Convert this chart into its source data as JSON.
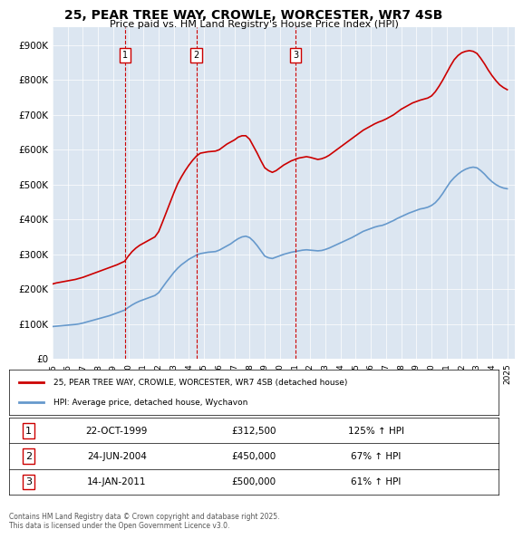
{
  "title": "25, PEAR TREE WAY, CROWLE, WORCESTER, WR7 4SB",
  "subtitle": "Price paid vs. HM Land Registry's House Price Index (HPI)",
  "ylabel_ticks": [
    "£0",
    "£100K",
    "£200K",
    "£300K",
    "£400K",
    "£500K",
    "£600K",
    "£700K",
    "£800K",
    "£900K"
  ],
  "ytick_values": [
    0,
    100000,
    200000,
    300000,
    400000,
    500000,
    600000,
    700000,
    800000,
    900000
  ],
  "ylim": [
    0,
    950000
  ],
  "xlim_start": 1995.0,
  "xlim_end": 2025.5,
  "background_color": "#dce6f1",
  "plot_bg_color": "#dce6f1",
  "red_line_color": "#cc0000",
  "blue_line_color": "#6699cc",
  "transaction_line_color": "#cc0000",
  "transactions": [
    {
      "num": 1,
      "date": "22-OCT-1999",
      "price": 312500,
      "pct": "125%",
      "direction": "↑",
      "x_year": 1999.81
    },
    {
      "num": 2,
      "date": "24-JUN-2004",
      "price": 450000,
      "pct": "67%",
      "direction": "↑",
      "x_year": 2004.48
    },
    {
      "num": 3,
      "date": "14-JAN-2011",
      "price": 500000,
      "pct": "61%",
      "direction": "↑",
      "x_year": 2011.04
    }
  ],
  "legend_red_label": "25, PEAR TREE WAY, CROWLE, WORCESTER, WR7 4SB (detached house)",
  "legend_blue_label": "HPI: Average price, detached house, Wychavon",
  "footnote": "Contains HM Land Registry data © Crown copyright and database right 2025.\nThis data is licensed under the Open Government Licence v3.0.",
  "hpi_years": [
    1995.0,
    1995.25,
    1995.5,
    1995.75,
    1996.0,
    1996.25,
    1996.5,
    1996.75,
    1997.0,
    1997.25,
    1997.5,
    1997.75,
    1998.0,
    1998.25,
    1998.5,
    1998.75,
    1999.0,
    1999.25,
    1999.5,
    1999.75,
    2000.0,
    2000.25,
    2000.5,
    2000.75,
    2001.0,
    2001.25,
    2001.5,
    2001.75,
    2002.0,
    2002.25,
    2002.5,
    2002.75,
    2003.0,
    2003.25,
    2003.5,
    2003.75,
    2004.0,
    2004.25,
    2004.5,
    2004.75,
    2005.0,
    2005.25,
    2005.5,
    2005.75,
    2006.0,
    2006.25,
    2006.5,
    2006.75,
    2007.0,
    2007.25,
    2007.5,
    2007.75,
    2008.0,
    2008.25,
    2008.5,
    2008.75,
    2009.0,
    2009.25,
    2009.5,
    2009.75,
    2010.0,
    2010.25,
    2010.5,
    2010.75,
    2011.0,
    2011.25,
    2011.5,
    2011.75,
    2012.0,
    2012.25,
    2012.5,
    2012.75,
    2013.0,
    2013.25,
    2013.5,
    2013.75,
    2014.0,
    2014.25,
    2014.5,
    2014.75,
    2015.0,
    2015.25,
    2015.5,
    2015.75,
    2016.0,
    2016.25,
    2016.5,
    2016.75,
    2017.0,
    2017.25,
    2017.5,
    2017.75,
    2018.0,
    2018.25,
    2018.5,
    2018.75,
    2019.0,
    2019.25,
    2019.5,
    2019.75,
    2020.0,
    2020.25,
    2020.5,
    2020.75,
    2021.0,
    2021.25,
    2021.5,
    2021.75,
    2022.0,
    2022.25,
    2022.5,
    2022.75,
    2023.0,
    2023.25,
    2023.5,
    2023.75,
    2024.0,
    2024.25,
    2024.5,
    2024.75,
    2025.0
  ],
  "hpi_values": [
    93000,
    94000,
    95000,
    96000,
    97000,
    98000,
    99000,
    100500,
    103000,
    106000,
    109000,
    112000,
    115000,
    118000,
    121000,
    124000,
    128000,
    132000,
    136000,
    140000,
    148000,
    155000,
    161000,
    166000,
    170000,
    174000,
    178000,
    182000,
    190000,
    205000,
    220000,
    234000,
    248000,
    260000,
    270000,
    278000,
    286000,
    292000,
    298000,
    302000,
    304000,
    306000,
    307000,
    308000,
    312000,
    318000,
    324000,
    330000,
    338000,
    345000,
    350000,
    352000,
    348000,
    338000,
    325000,
    310000,
    295000,
    290000,
    288000,
    292000,
    296000,
    300000,
    303000,
    306000,
    308000,
    310000,
    312000,
    313000,
    312000,
    311000,
    310000,
    311000,
    314000,
    318000,
    323000,
    328000,
    333000,
    338000,
    343000,
    348000,
    354000,
    360000,
    366000,
    370000,
    374000,
    378000,
    381000,
    383000,
    387000,
    392000,
    397000,
    403000,
    408000,
    413000,
    418000,
    422000,
    426000,
    430000,
    432000,
    435000,
    440000,
    448000,
    460000,
    475000,
    492000,
    508000,
    520000,
    530000,
    538000,
    544000,
    548000,
    550000,
    548000,
    540000,
    530000,
    518000,
    508000,
    500000,
    494000,
    490000,
    488000
  ],
  "red_years": [
    1995.0,
    1995.25,
    1995.5,
    1995.75,
    1996.0,
    1996.25,
    1996.5,
    1996.75,
    1997.0,
    1997.25,
    1997.5,
    1997.75,
    1998.0,
    1998.25,
    1998.5,
    1998.75,
    1999.0,
    1999.25,
    1999.5,
    1999.75,
    2000.0,
    2000.25,
    2000.5,
    2000.75,
    2001.0,
    2001.25,
    2001.5,
    2001.75,
    2002.0,
    2002.25,
    2002.5,
    2002.75,
    2003.0,
    2003.25,
    2003.5,
    2003.75,
    2004.0,
    2004.25,
    2004.5,
    2004.75,
    2005.0,
    2005.25,
    2005.5,
    2005.75,
    2006.0,
    2006.25,
    2006.5,
    2006.75,
    2007.0,
    2007.25,
    2007.5,
    2007.75,
    2008.0,
    2008.25,
    2008.5,
    2008.75,
    2009.0,
    2009.25,
    2009.5,
    2009.75,
    2010.0,
    2010.25,
    2010.5,
    2010.75,
    2011.0,
    2011.25,
    2011.5,
    2011.75,
    2012.0,
    2012.25,
    2012.5,
    2012.75,
    2013.0,
    2013.25,
    2013.5,
    2013.75,
    2014.0,
    2014.25,
    2014.5,
    2014.75,
    2015.0,
    2015.25,
    2015.5,
    2015.75,
    2016.0,
    2016.25,
    2016.5,
    2016.75,
    2017.0,
    2017.25,
    2017.5,
    2017.75,
    2018.0,
    2018.25,
    2018.5,
    2018.75,
    2019.0,
    2019.25,
    2019.5,
    2019.75,
    2020.0,
    2020.25,
    2020.5,
    2020.75,
    2021.0,
    2021.25,
    2021.5,
    2021.75,
    2022.0,
    2022.25,
    2022.5,
    2022.75,
    2023.0,
    2023.25,
    2023.5,
    2023.75,
    2024.0,
    2024.25,
    2024.5,
    2024.75,
    2025.0
  ],
  "red_values": [
    215000,
    218000,
    220000,
    222000,
    224000,
    226000,
    228000,
    231000,
    234000,
    238000,
    242000,
    246000,
    250000,
    254000,
    258000,
    262000,
    266000,
    270000,
    275000,
    280000,
    295000,
    308000,
    318000,
    326000,
    332000,
    338000,
    344000,
    350000,
    365000,
    392000,
    420000,
    448000,
    476000,
    502000,
    522000,
    540000,
    556000,
    570000,
    582000,
    590000,
    592000,
    594000,
    595000,
    596000,
    600000,
    608000,
    616000,
    622000,
    628000,
    636000,
    640000,
    640000,
    630000,
    610000,
    590000,
    568000,
    548000,
    540000,
    535000,
    540000,
    548000,
    556000,
    562000,
    568000,
    572000,
    576000,
    578000,
    580000,
    578000,
    575000,
    572000,
    574000,
    578000,
    584000,
    592000,
    600000,
    608000,
    616000,
    624000,
    632000,
    640000,
    648000,
    656000,
    662000,
    668000,
    674000,
    679000,
    683000,
    688000,
    694000,
    700000,
    708000,
    716000,
    722000,
    728000,
    734000,
    738000,
    742000,
    745000,
    748000,
    754000,
    766000,
    782000,
    800000,
    820000,
    840000,
    858000,
    870000,
    878000,
    882000,
    884000,
    882000,
    876000,
    862000,
    846000,
    828000,
    812000,
    798000,
    786000,
    778000,
    772000
  ]
}
